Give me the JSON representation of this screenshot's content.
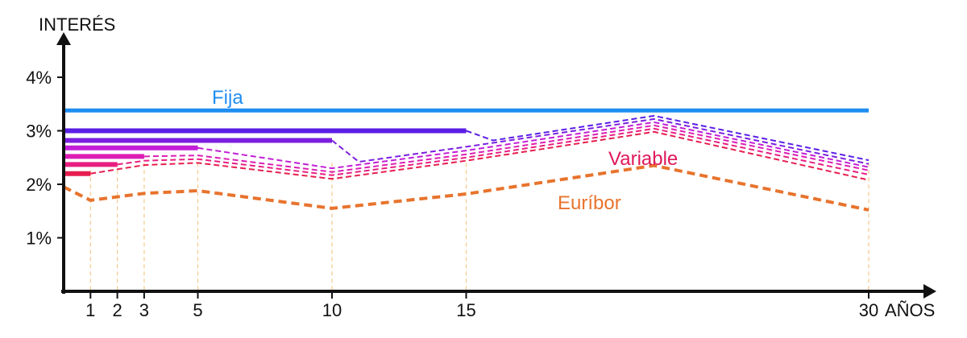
{
  "chart_data": {
    "type": "line",
    "title": "",
    "xlabel": "AÑOS",
    "ylabel": "INTERÉS",
    "x_ticks": [
      "1",
      "2",
      "3",
      "5",
      "10",
      "15",
      "30"
    ],
    "y_ticks": [
      "1%",
      "2%",
      "3%",
      "4%"
    ],
    "xlim": [
      0,
      30.4
    ],
    "ylim": [
      0,
      4.6
    ],
    "grid": false,
    "colors": {
      "fija": "#1f8ef1",
      "euribor": "#e8732d",
      "variable_label": "#e0185a",
      "guide": "#f5c98a",
      "axis": "#111111"
    },
    "series": [
      {
        "name": "Fija",
        "role": "fija",
        "style": "solid",
        "points": [
          [
            0,
            3.38
          ],
          [
            30,
            3.38
          ]
        ]
      },
      {
        "name": "Euríbor",
        "role": "euribor",
        "style": "dashed",
        "points": [
          [
            0,
            1.95
          ],
          [
            1,
            1.7
          ],
          [
            3,
            1.83
          ],
          [
            5,
            1.88
          ],
          [
            10,
            1.55
          ],
          [
            15,
            1.82
          ],
          [
            22,
            2.35
          ],
          [
            30,
            1.52
          ]
        ]
      },
      {
        "name": "Variable",
        "role": "variable",
        "groups": [
          {
            "color": "#5a1ee6",
            "fixed_until": 15,
            "fixed_rate": 3.0,
            "points": [
              [
                15,
                3.0
              ],
              [
                16,
                2.82
              ],
              [
                22,
                3.28
              ],
              [
                30,
                2.45
              ]
            ]
          },
          {
            "color": "#7b1ee0",
            "fixed_until": 10,
            "fixed_rate": 2.82,
            "points": [
              [
                10,
                2.82
              ],
              [
                11,
                2.42
              ],
              [
                15,
                2.7
              ],
              [
                22,
                3.22
              ],
              [
                30,
                2.38
              ]
            ]
          },
          {
            "color": "#c21ed6",
            "fixed_until": 5,
            "fixed_rate": 2.68,
            "points": [
              [
                5,
                2.68
              ],
              [
                10,
                2.3
              ],
              [
                15,
                2.63
              ],
              [
                22,
                3.16
              ],
              [
                30,
                2.32
              ]
            ]
          },
          {
            "color": "#dc1eb4",
            "fixed_until": 3,
            "fixed_rate": 2.52,
            "points": [
              [
                3,
                2.52
              ],
              [
                5,
                2.54
              ],
              [
                10,
                2.23
              ],
              [
                15,
                2.56
              ],
              [
                22,
                3.1
              ],
              [
                30,
                2.26
              ]
            ]
          },
          {
            "color": "#e81e82",
            "fixed_until": 2,
            "fixed_rate": 2.37,
            "points": [
              [
                2,
                2.37
              ],
              [
                3,
                2.44
              ],
              [
                5,
                2.47
              ],
              [
                10,
                2.17
              ],
              [
                15,
                2.5
              ],
              [
                22,
                3.04
              ],
              [
                30,
                2.18
              ]
            ]
          },
          {
            "color": "#e61e50",
            "fixed_until": 1,
            "fixed_rate": 2.2,
            "points": [
              [
                1,
                2.2
              ],
              [
                2,
                2.28
              ],
              [
                3,
                2.36
              ],
              [
                5,
                2.4
              ],
              [
                10,
                2.1
              ],
              [
                15,
                2.44
              ],
              [
                22,
                2.98
              ],
              [
                30,
                2.08
              ]
            ]
          }
        ]
      }
    ],
    "annotations": [
      {
        "text": "Fija",
        "role": "fija"
      },
      {
        "text": "Variable",
        "role": "variable"
      },
      {
        "text": "Euríbor",
        "role": "euribor"
      }
    ]
  }
}
